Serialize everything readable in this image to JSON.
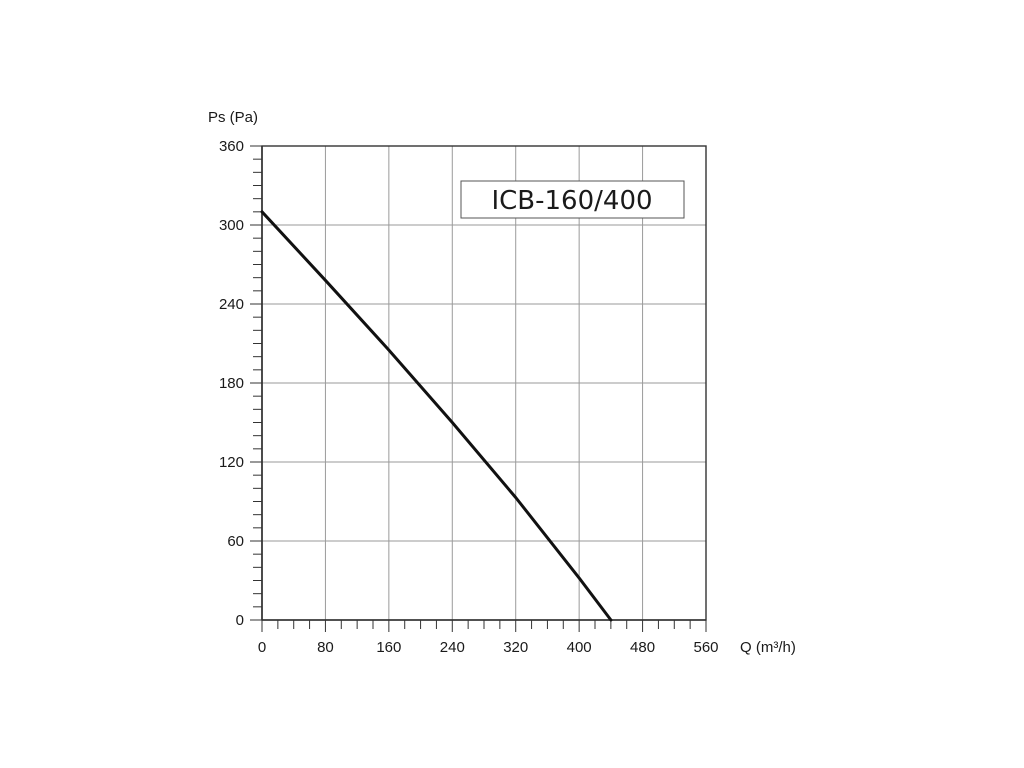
{
  "chart_data": {
    "type": "line",
    "title": "",
    "model_label": "ICB-160/400",
    "xlabel": "Q (m³/h)",
    "ylabel": "Ps (Pa)",
    "xlim": [
      0,
      560
    ],
    "ylim": [
      0,
      360
    ],
    "x_ticks": [
      0,
      80,
      160,
      240,
      320,
      400,
      480,
      560
    ],
    "y_ticks": [
      0,
      60,
      120,
      180,
      240,
      300,
      360
    ],
    "grid": true,
    "series": [
      {
        "x": [
          0,
          80,
          160,
          240,
          320,
          400,
          440
        ],
        "y": [
          310,
          258,
          205,
          150,
          93,
          32,
          0
        ]
      }
    ],
    "colors": {
      "curve": "#111111",
      "grid": "#9a9a9a",
      "axis": "#333333"
    }
  }
}
